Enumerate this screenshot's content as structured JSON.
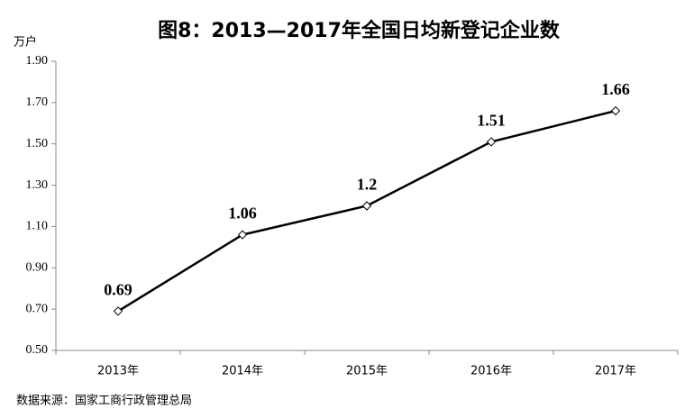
{
  "chart_data": {
    "type": "line",
    "title": "图8：2013—2017年全国日均新登记企业数",
    "y_unit": "万户",
    "source": "数据来源：国家工商行政管理总局",
    "categories": [
      "2013年",
      "2014年",
      "2015年",
      "2016年",
      "2017年"
    ],
    "values": [
      0.69,
      1.06,
      1.2,
      1.51,
      1.66
    ],
    "color": "#000000",
    "marker": "diamond",
    "ylim": [
      0.5,
      1.9
    ],
    "yticks": [
      {
        "value": 0.5,
        "label": "0.50"
      },
      {
        "value": 0.7,
        "label": "0.70"
      },
      {
        "value": 0.9,
        "label": "0.90"
      },
      {
        "value": 1.1,
        "label": "1.10"
      },
      {
        "value": 1.3,
        "label": "1.30"
      },
      {
        "value": 1.5,
        "label": "1.50"
      },
      {
        "value": 1.7,
        "label": "1.70"
      },
      {
        "value": 1.9,
        "label": "1.90"
      }
    ],
    "grid": false
  }
}
